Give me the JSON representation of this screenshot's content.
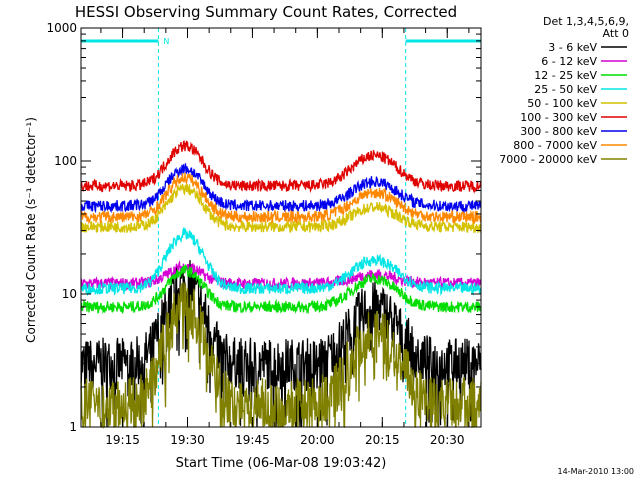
{
  "chart_data": {
    "type": "line",
    "title": "HESSI Observing Summary Count Rates, Corrected",
    "xlabel": "Start Time (06-Mar-08 19:03:42)",
    "ylabel": "Corrected Count Rate (s⁻¹ detector⁻¹)",
    "xlim": [
      19.09,
      20.63
    ],
    "ylim": [
      1,
      1000
    ],
    "y_scale": "log",
    "x_ticks": [
      {
        "t": 19.25,
        "label": "19:15"
      },
      {
        "t": 19.5,
        "label": "19:30"
      },
      {
        "t": 19.75,
        "label": "19:45"
      },
      {
        "t": 20.0,
        "label": "20:00"
      },
      {
        "t": 20.25,
        "label": "20:15"
      },
      {
        "t": 20.5,
        "label": "20:30"
      }
    ],
    "y_ticks": [
      {
        "v": 1,
        "label": "1"
      },
      {
        "v": 10,
        "label": "10"
      },
      {
        "v": 100,
        "label": "100"
      },
      {
        "v": 1000,
        "label": "1000"
      }
    ],
    "legend_header": [
      "Det 1,3,4,5,6,9,",
      "Att 0"
    ],
    "legend_placement": "right",
    "night_intervals": [
      {
        "start": 19.09,
        "end": 19.388,
        "label": "N"
      },
      {
        "start": 20.34,
        "end": 20.63,
        "label": ""
      }
    ],
    "series": [
      {
        "name": "3 - 6 keV",
        "color": "#000000",
        "base": 3.0,
        "p1": 12.0,
        "p2": 8.0
      },
      {
        "name": "6 - 12 keV",
        "color": "#d400d4",
        "base": 12.0,
        "p1": 16.0,
        "p2": 14.0
      },
      {
        "name": "12 - 25 keV",
        "color": "#00dd00",
        "base": 8.0,
        "p1": 15.0,
        "p2": 13.0
      },
      {
        "name": "25 - 50 keV",
        "color": "#00e5e5",
        "base": 11.0,
        "p1": 28.0,
        "p2": 18.0
      },
      {
        "name": "50 - 100 keV",
        "color": "#d4c200",
        "base": 32.0,
        "p1": 62.0,
        "p2": 45.0
      },
      {
        "name": "100 - 300 keV",
        "color": "#e00000",
        "base": 65.0,
        "p1": 130.0,
        "p2": 110.0
      },
      {
        "name": "300 - 800 keV",
        "color": "#0000ee",
        "base": 46.0,
        "p1": 88.0,
        "p2": 70.0
      },
      {
        "name": "800 - 7000 keV",
        "color": "#ff8800",
        "base": 38.0,
        "p1": 75.0,
        "p2": 58.0
      },
      {
        "name": "7000 - 20000 keV",
        "color": "#808000",
        "base": 1.5,
        "p1": 8.0,
        "p2": 5.0
      }
    ],
    "peak_times": [
      19.49,
      20.22
    ],
    "footer_date": "14-Mar-2010 13:00"
  }
}
